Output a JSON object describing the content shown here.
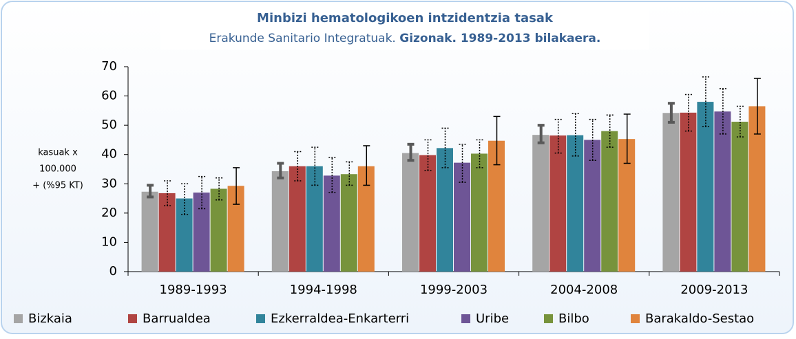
{
  "chart_data": {
    "type": "bar",
    "title": "Minbizi hematologikoen intzidentzia tasak",
    "subtitle": [
      "Erakunde Sanitario Integratuak.",
      "Gizonak. 1989-2013 bilakaera."
    ],
    "ylabel": [
      "kasuak x",
      "100.000",
      "+ (%95 KT)"
    ],
    "categories": [
      "1989-1993",
      "1994-1998",
      "1999-2003",
      "2004-2008",
      "2009-2013"
    ],
    "ylim": [
      0,
      70
    ],
    "yticks": [
      0,
      10,
      20,
      30,
      40,
      50,
      60,
      70
    ],
    "legend": "bottom",
    "series": [
      {
        "name": "Bizkaia",
        "color": "#a5a5a5",
        "values": [
          27.3,
          34.3,
          40.5,
          46.7,
          54.2
        ],
        "ci_low": [
          25.5,
          32,
          38,
          44,
          51
        ],
        "ci_high": [
          29.5,
          37,
          43.5,
          50,
          57.5
        ]
      },
      {
        "name": "Barrualdea",
        "color": "#b04442",
        "values": [
          26.8,
          36,
          39.8,
          46.5,
          54.3
        ],
        "ci_low": [
          22.5,
          31,
          34.5,
          40.5,
          48
        ],
        "ci_high": [
          31,
          41,
          45,
          52,
          60.5
        ]
      },
      {
        "name": "Ezkerraldea-Enkarterri",
        "color": "#31849b",
        "values": [
          25,
          36,
          42.2,
          46.6,
          58
        ],
        "ci_low": [
          19.5,
          29.5,
          35.5,
          39.5,
          49.5
        ],
        "ci_high": [
          30,
          42.5,
          49,
          54,
          66.5
        ]
      },
      {
        "name": "Uribe",
        "color": "#6e5596",
        "values": [
          27,
          32.8,
          37.2,
          45,
          54.7
        ],
        "ci_low": [
          21.5,
          27,
          30.5,
          38,
          47
        ],
        "ci_high": [
          32.5,
          39,
          43.5,
          52,
          62.5
        ]
      },
      {
        "name": "Bilbo",
        "color": "#77933c",
        "values": [
          28.3,
          33.3,
          40.3,
          48,
          51.2
        ],
        "ci_low": [
          24.5,
          29.5,
          35.5,
          42.5,
          46
        ],
        "ci_high": [
          32,
          37.5,
          45,
          53.5,
          56.5
        ]
      },
      {
        "name": "Barakaldo-Sestao",
        "color": "#e0843d",
        "values": [
          29.3,
          36,
          44.7,
          45.3,
          56.5
        ],
        "ci_low": [
          23,
          29.5,
          36.5,
          37,
          47
        ],
        "ci_high": [
          35.5,
          43,
          53,
          53.8,
          66
        ]
      }
    ]
  }
}
